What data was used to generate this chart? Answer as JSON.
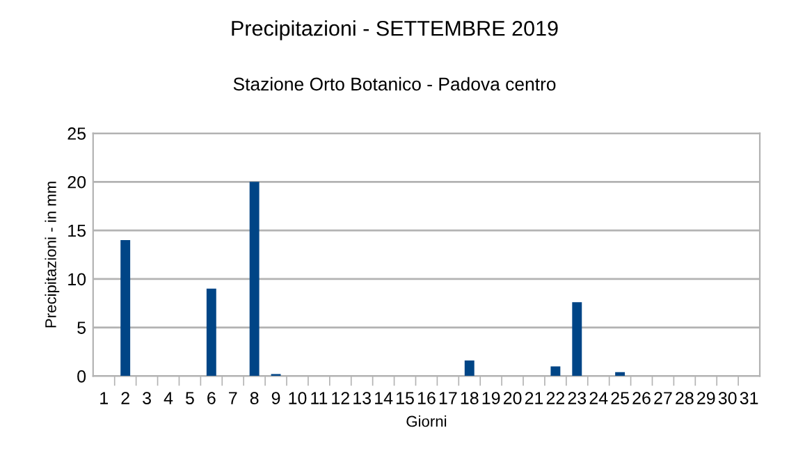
{
  "chart_data": {
    "type": "bar",
    "title": "Precipitazioni - SETTEMBRE 2019",
    "subtitle": "Stazione Orto Botanico - Padova centro",
    "xlabel": "Giorni",
    "ylabel": "Precipitazioni - in mm",
    "categories": [
      "1",
      "2",
      "3",
      "4",
      "5",
      "6",
      "7",
      "8",
      "9",
      "10",
      "11",
      "12",
      "13",
      "14",
      "15",
      "16",
      "17",
      "18",
      "19",
      "20",
      "21",
      "22",
      "23",
      "24",
      "25",
      "26",
      "27",
      "28",
      "29",
      "30",
      "31"
    ],
    "values": [
      0,
      14,
      0,
      0,
      0,
      9,
      0,
      20,
      0.2,
      0,
      0,
      0,
      0,
      0,
      0,
      0,
      0,
      1.6,
      0,
      0,
      0,
      1,
      7.6,
      0,
      0.4,
      0,
      0,
      0,
      0,
      0,
      0
    ],
    "color": "#004586",
    "ylim": [
      0,
      25
    ],
    "yticks": [
      0,
      5,
      10,
      15,
      20,
      25
    ],
    "grid": "y",
    "legend": false
  }
}
